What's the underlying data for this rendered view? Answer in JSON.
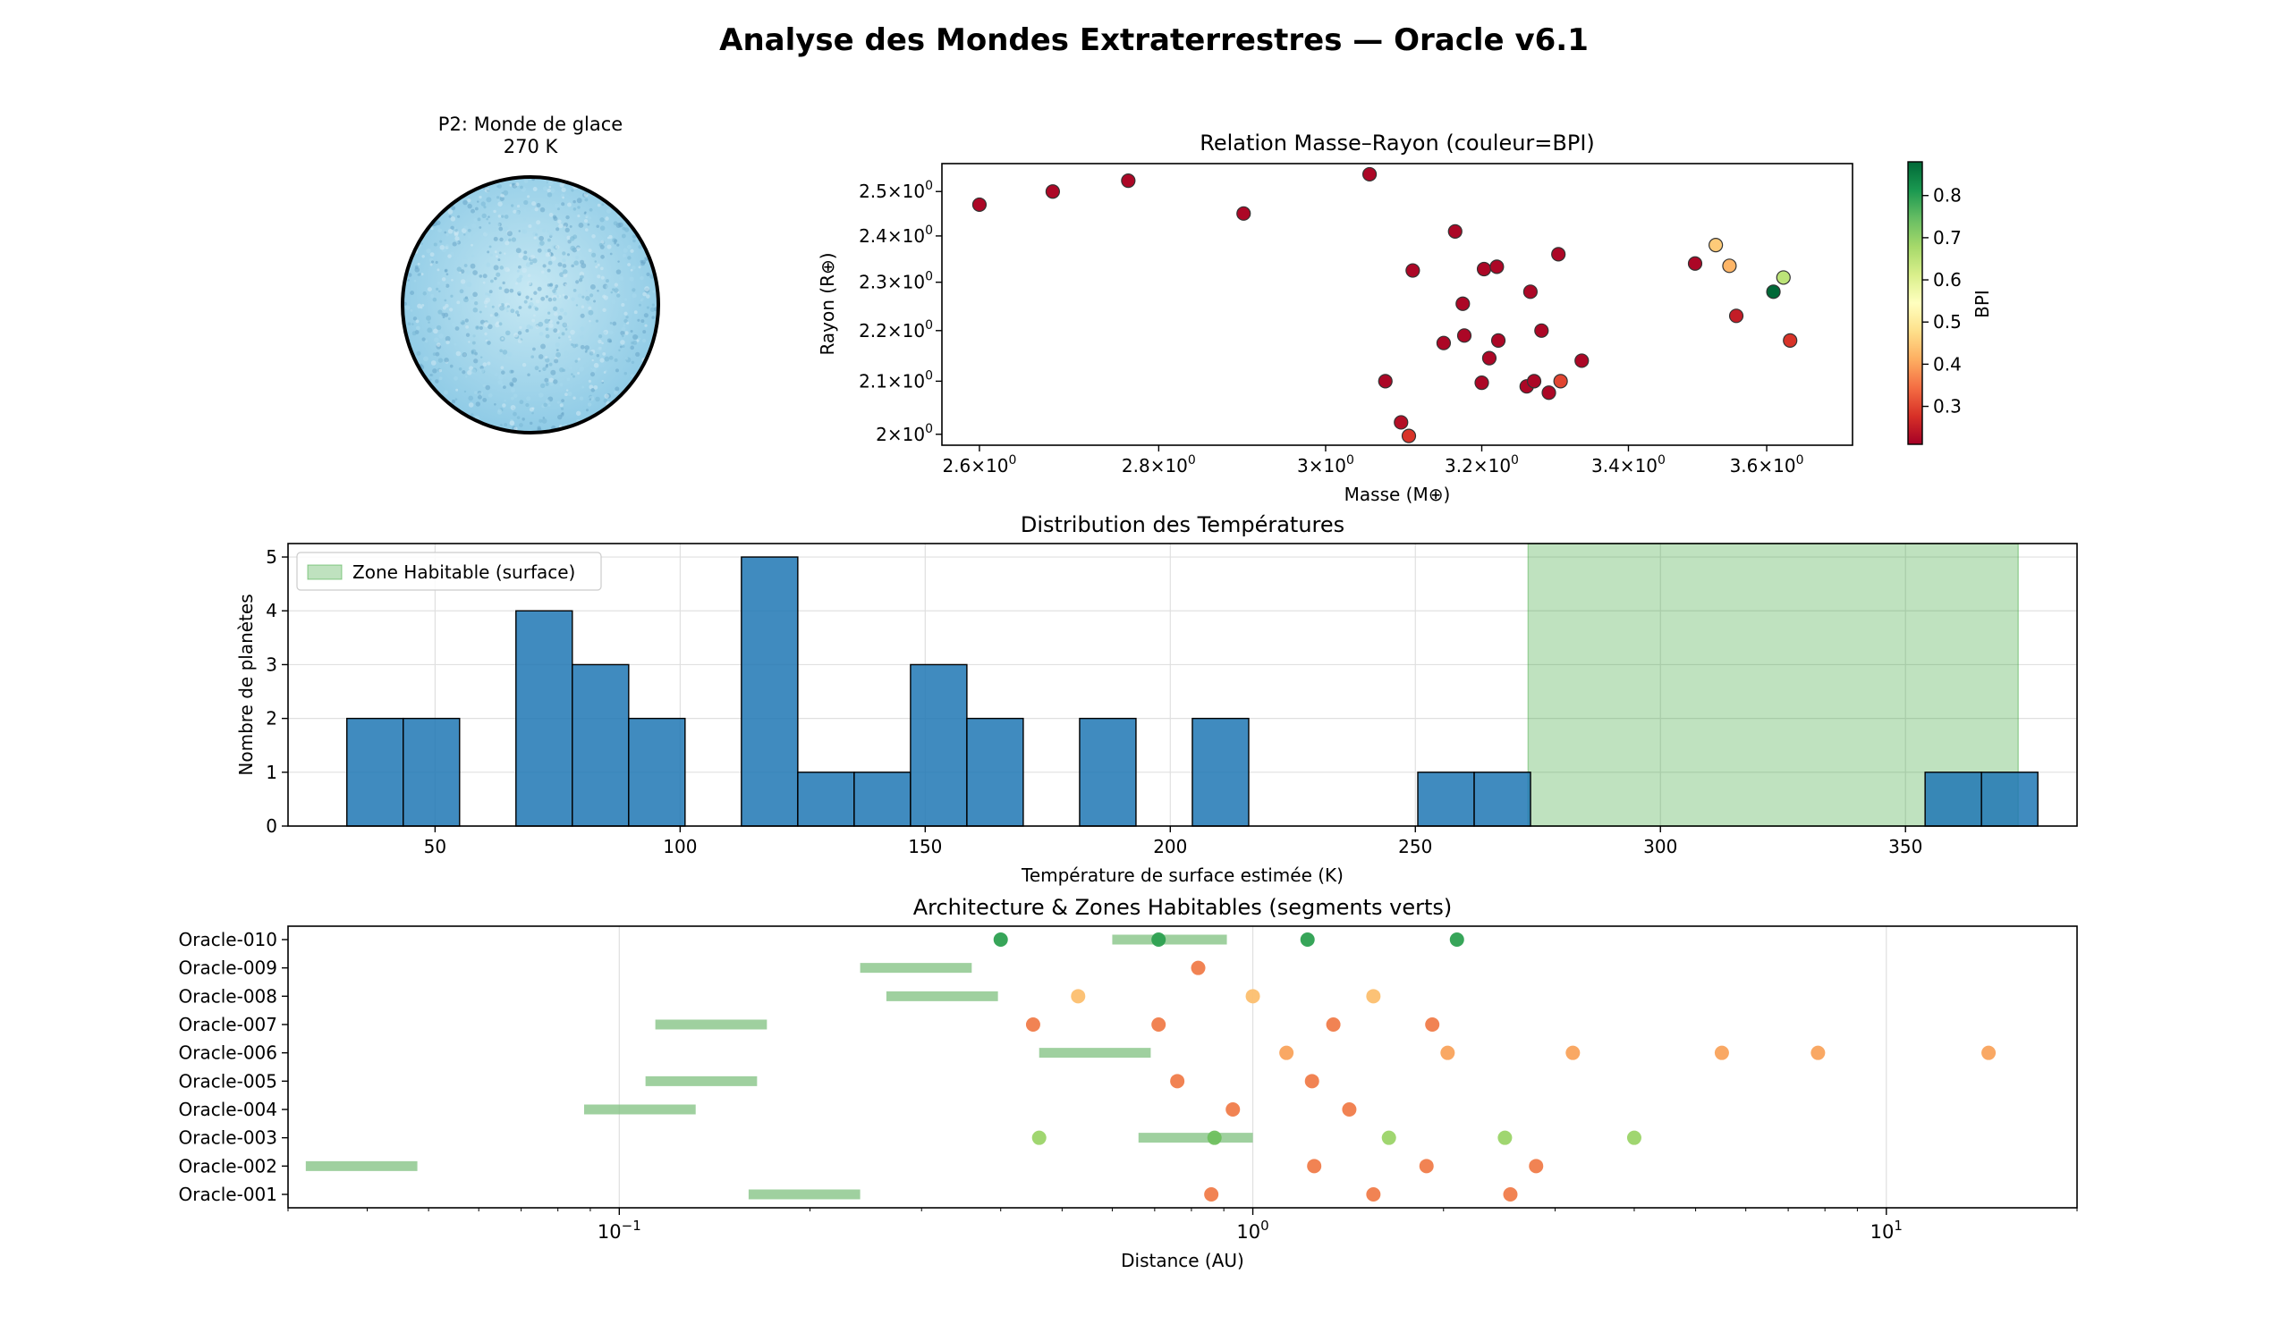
{
  "figure": {
    "title": "Analyse des Mondes Extraterrestres — Oracle v6.1"
  },
  "chart_data": [
    {
      "type": "planet",
      "title_line1": "P2: Monde de glace",
      "title_line2": "270 K",
      "fill_color": "#8fcbe6",
      "speckle_colors": [
        "#cfe9f4",
        "#7ab8d6",
        "#a7d8ec",
        "#6aa6c8"
      ],
      "border_color": "#000000"
    },
    {
      "type": "scatter",
      "title": "Relation Masse–Rayon (couleur=BPI)",
      "xlabel": "Masse (M⊕)",
      "ylabel": "Rayon (R⊕)",
      "xscale": "log",
      "yscale": "log",
      "xlim": [
        2.56,
        3.73
      ],
      "ylim": [
        1.98,
        2.565
      ],
      "xticks": [
        2.6,
        2.8,
        3.0,
        3.2,
        3.4,
        3.6
      ],
      "xtick_labels": [
        "2.6",
        "2.8",
        "3",
        "3.2",
        "3.4",
        "3.6"
      ],
      "yticks": [
        2.0,
        2.1,
        2.2,
        2.3,
        2.4,
        2.5
      ],
      "ytick_labels": [
        "2",
        "2.1",
        "2.2",
        "2.3",
        "2.4",
        "2.5"
      ],
      "tick_exponent": "0",
      "colormap": "RdYlGn",
      "colorbar": {
        "label": "BPI",
        "range": [
          0.21,
          0.88
        ],
        "ticks": [
          0.3,
          0.4,
          0.5,
          0.6,
          0.7,
          0.8
        ],
        "tick_labels": [
          "0.3",
          "0.4",
          "0.5",
          "0.6",
          "0.7",
          "0.8"
        ]
      },
      "points": [
        {
          "x": 2.6,
          "y": 2.47,
          "bpi": 0.22
        },
        {
          "x": 2.68,
          "y": 2.5,
          "bpi": 0.22
        },
        {
          "x": 2.765,
          "y": 2.525,
          "bpi": 0.22
        },
        {
          "x": 2.9,
          "y": 2.45,
          "bpi": 0.22
        },
        {
          "x": 3.055,
          "y": 2.54,
          "bpi": 0.22
        },
        {
          "x": 3.075,
          "y": 2.1,
          "bpi": 0.22
        },
        {
          "x": 3.095,
          "y": 2.022,
          "bpi": 0.23
        },
        {
          "x": 3.105,
          "y": 1.997,
          "bpi": 0.28
        },
        {
          "x": 3.11,
          "y": 2.325,
          "bpi": 0.22
        },
        {
          "x": 3.15,
          "y": 2.175,
          "bpi": 0.22
        },
        {
          "x": 3.165,
          "y": 2.41,
          "bpi": 0.22
        },
        {
          "x": 3.175,
          "y": 2.255,
          "bpi": 0.22
        },
        {
          "x": 3.177,
          "y": 2.19,
          "bpi": 0.22
        },
        {
          "x": 3.2,
          "y": 2.097,
          "bpi": 0.22
        },
        {
          "x": 3.203,
          "y": 2.328,
          "bpi": 0.22
        },
        {
          "x": 3.21,
          "y": 2.145,
          "bpi": 0.22
        },
        {
          "x": 3.22,
          "y": 2.333,
          "bpi": 0.22
        },
        {
          "x": 3.222,
          "y": 2.18,
          "bpi": 0.22
        },
        {
          "x": 3.26,
          "y": 2.09,
          "bpi": 0.22
        },
        {
          "x": 3.265,
          "y": 2.28,
          "bpi": 0.22
        },
        {
          "x": 3.27,
          "y": 2.1,
          "bpi": 0.22
        },
        {
          "x": 3.28,
          "y": 2.2,
          "bpi": 0.22
        },
        {
          "x": 3.29,
          "y": 2.078,
          "bpi": 0.22
        },
        {
          "x": 3.303,
          "y": 2.36,
          "bpi": 0.22
        },
        {
          "x": 3.306,
          "y": 2.1,
          "bpi": 0.3
        },
        {
          "x": 3.335,
          "y": 2.14,
          "bpi": 0.22
        },
        {
          "x": 3.495,
          "y": 2.34,
          "bpi": 0.22
        },
        {
          "x": 3.525,
          "y": 2.38,
          "bpi": 0.45
        },
        {
          "x": 3.545,
          "y": 2.335,
          "bpi": 0.42
        },
        {
          "x": 3.555,
          "y": 2.23,
          "bpi": 0.25
        },
        {
          "x": 3.61,
          "y": 2.28,
          "bpi": 0.88
        },
        {
          "x": 3.625,
          "y": 2.31,
          "bpi": 0.65
        },
        {
          "x": 3.635,
          "y": 2.18,
          "bpi": 0.28
        }
      ]
    },
    {
      "type": "bar",
      "title": "Distribution des Températures",
      "xlabel": "Température de surface estimée (K)",
      "ylabel": "Nombre de planètes",
      "xlim": [
        20,
        385
      ],
      "ylim": [
        0,
        5.25
      ],
      "xticks": [
        50,
        100,
        150,
        200,
        250,
        300,
        350
      ],
      "yticks": [
        0,
        1,
        2,
        3,
        4,
        5
      ],
      "bin_width": 11.5,
      "bins": [
        {
          "x0": 32.0,
          "count": 2
        },
        {
          "x0": 43.5,
          "count": 2
        },
        {
          "x0": 55.0,
          "count": 0
        },
        {
          "x0": 66.5,
          "count": 4
        },
        {
          "x0": 78.0,
          "count": 3
        },
        {
          "x0": 89.5,
          "count": 2
        },
        {
          "x0": 101.0,
          "count": 0
        },
        {
          "x0": 112.5,
          "count": 5
        },
        {
          "x0": 124.0,
          "count": 1
        },
        {
          "x0": 135.5,
          "count": 1
        },
        {
          "x0": 147.0,
          "count": 3
        },
        {
          "x0": 158.5,
          "count": 2
        },
        {
          "x0": 170.0,
          "count": 0
        },
        {
          "x0": 181.5,
          "count": 2
        },
        {
          "x0": 193.0,
          "count": 0
        },
        {
          "x0": 204.5,
          "count": 2
        },
        {
          "x0": 216.0,
          "count": 0
        },
        {
          "x0": 227.5,
          "count": 0
        },
        {
          "x0": 239.0,
          "count": 0
        },
        {
          "x0": 250.5,
          "count": 1
        },
        {
          "x0": 262.0,
          "count": 1
        },
        {
          "x0": 273.5,
          "count": 0
        },
        {
          "x0": 285.0,
          "count": 0
        },
        {
          "x0": 296.5,
          "count": 0
        },
        {
          "x0": 308.0,
          "count": 0
        },
        {
          "x0": 319.5,
          "count": 0
        },
        {
          "x0": 331.0,
          "count": 0
        },
        {
          "x0": 342.5,
          "count": 0
        },
        {
          "x0": 354.0,
          "count": 1
        },
        {
          "x0": 365.5,
          "count": 1
        }
      ],
      "bar_color": "#1f77b4",
      "zone": {
        "label": "Zone Habitable (surface)",
        "x0": 273,
        "x1": 373,
        "color": "#2ca02c"
      },
      "legend_position": "upper-left"
    },
    {
      "type": "scatter",
      "title": "Architecture & Zones Habitables (segments verts)",
      "xlabel": "Distance (AU)",
      "xscale": "log",
      "xlim": [
        0.03,
        20
      ],
      "xticks": [
        0.1,
        1,
        10
      ],
      "tick_base": "10",
      "tick_exponents": [
        "−1",
        "0",
        "1"
      ],
      "systems": [
        "Oracle-001",
        "Oracle-002",
        "Oracle-003",
        "Oracle-004",
        "Oracle-005",
        "Oracle-006",
        "Oracle-007",
        "Oracle-008",
        "Oracle-009",
        "Oracle-010"
      ],
      "hz_color": "#7fc07f",
      "hz": [
        [
          0.16,
          0.24
        ],
        [
          0.032,
          0.048
        ],
        [
          0.66,
          1.0
        ],
        [
          0.088,
          0.132
        ],
        [
          0.11,
          0.165
        ],
        [
          0.46,
          0.69
        ],
        [
          0.114,
          0.171
        ],
        [
          0.264,
          0.396
        ],
        [
          0.24,
          0.36
        ],
        [
          0.6,
          0.91
        ]
      ],
      "planets": [
        [
          {
            "d": 0.86,
            "c": "#f07c4a"
          },
          {
            "d": 1.55,
            "c": "#f07c4a"
          },
          {
            "d": 2.55,
            "c": "#f07c4a"
          }
        ],
        [
          {
            "d": 1.25,
            "c": "#f07c4a"
          },
          {
            "d": 1.88,
            "c": "#f07c4a"
          },
          {
            "d": 2.8,
            "c": "#f07c4a"
          }
        ],
        [
          {
            "d": 0.46,
            "c": "#9bd468"
          },
          {
            "d": 0.87,
            "c": "#6fc05f"
          },
          {
            "d": 1.64,
            "c": "#9bd468"
          },
          {
            "d": 2.5,
            "c": "#9bd468"
          },
          {
            "d": 4.0,
            "c": "#9bd468"
          }
        ],
        [
          {
            "d": 0.93,
            "c": "#f07c4a"
          },
          {
            "d": 1.42,
            "c": "#f07c4a"
          }
        ],
        [
          {
            "d": 0.76,
            "c": "#f07c4a"
          },
          {
            "d": 1.24,
            "c": "#f07c4a"
          }
        ],
        [
          {
            "d": 1.13,
            "c": "#f9a35c"
          },
          {
            "d": 2.03,
            "c": "#f9a35c"
          },
          {
            "d": 3.2,
            "c": "#f9a35c"
          },
          {
            "d": 5.5,
            "c": "#f9a35c"
          },
          {
            "d": 7.8,
            "c": "#f9a35c"
          },
          {
            "d": 14.5,
            "c": "#f9a35c"
          }
        ],
        [
          {
            "d": 0.45,
            "c": "#f07c4a"
          },
          {
            "d": 0.71,
            "c": "#f07c4a"
          },
          {
            "d": 1.34,
            "c": "#f07c4a"
          },
          {
            "d": 1.92,
            "c": "#f07c4a"
          }
        ],
        [
          {
            "d": 0.53,
            "c": "#fcbf6f"
          },
          {
            "d": 1.0,
            "c": "#fcbf6f"
          },
          {
            "d": 1.55,
            "c": "#fcbf6f"
          }
        ],
        [
          {
            "d": 0.82,
            "c": "#f07c4a"
          }
        ],
        [
          {
            "d": 0.4,
            "c": "#2ca050"
          },
          {
            "d": 0.71,
            "c": "#2ca050"
          },
          {
            "d": 1.22,
            "c": "#2ca050"
          },
          {
            "d": 2.1,
            "c": "#2ca050"
          }
        ]
      ]
    }
  ]
}
